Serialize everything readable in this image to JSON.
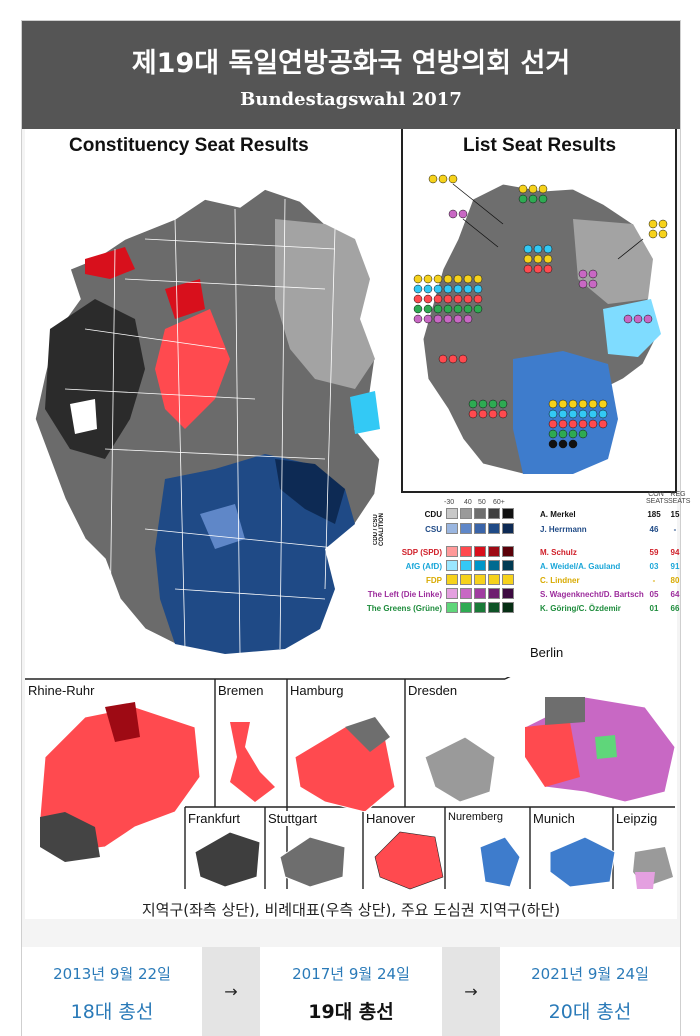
{
  "header": {
    "title_ko": "제19대 독일연방공화국 연방의회 선거",
    "title_de": "Bundestagswahl 2017"
  },
  "sections": {
    "constituency_title": "Constituency Seat Results",
    "list_title": "List Seat Results"
  },
  "legend": {
    "scale_labels": [
      "-30",
      "40",
      "50",
      "60+"
    ],
    "coalition_label": "CDU / CSU COALITION",
    "col_con": "CON SEATS",
    "col_reg": "REG SEATS",
    "rows": [
      {
        "party": "CDU",
        "leader": "A. Merkel",
        "con": "185",
        "reg": "15",
        "text_color": "#111111",
        "colors": [
          "#c8c8c8",
          "#9a9a9a",
          "#6e6e6e",
          "#3e3e3e",
          "#111111"
        ]
      },
      {
        "party": "CSU",
        "leader": "J. Herrmann",
        "con": "46",
        "reg": "-",
        "text_color": "#1f4a86",
        "colors": [
          "#9ab6e0",
          "#5f87c8",
          "#3a64a8",
          "#1f4a86",
          "#0d2a54"
        ]
      },
      {
        "party": "SDP (SPD)",
        "leader": "M. Schulz",
        "con": "59",
        "reg": "94",
        "text_color": "#d0202a",
        "colors": [
          "#ff9a9a",
          "#ff4a4f",
          "#d8101c",
          "#9e0a14",
          "#5a0008"
        ]
      },
      {
        "party": "AfG (AfD)",
        "leader": "A. Weidel/A. Gauland",
        "con": "03",
        "reg": "91",
        "text_color": "#1aa6d8",
        "colors": [
          "#9be7ff",
          "#33c9f5",
          "#0096c8",
          "#006a90",
          "#003a52"
        ]
      },
      {
        "party": "FDP",
        "leader": "C. Lindner",
        "con": "-",
        "reg": "80",
        "text_color": "#d8aa00",
        "colors": [
          "#f6d21c",
          "#f6d21c",
          "#f6d21c",
          "#f6d21c",
          "#f6d21c"
        ]
      },
      {
        "party": "The Left (Die Linke)",
        "leader": "S. Wagenknecht/D. Bartsch",
        "con": "05",
        "reg": "64",
        "text_color": "#9c2c9c",
        "colors": [
          "#e4a0e0",
          "#c868c4",
          "#a03ca0",
          "#6e1e70",
          "#3c0a40"
        ]
      },
      {
        "party": "The Greens (Grüne)",
        "leader": "K. Göring/C. Özdemir",
        "con": "01",
        "reg": "66",
        "text_color": "#1e8c3c",
        "colors": [
          "#5fd67a",
          "#2eaa52",
          "#1a7a38",
          "#0e5226",
          "#062e14"
        ]
      }
    ]
  },
  "cities": [
    "Rhine-Ruhr",
    "Bremen",
    "Hamburg",
    "Dresden",
    "Berlin",
    "Frankfurt",
    "Stuttgart",
    "Hanover",
    "Nuremberg",
    "Munich",
    "Leipzig"
  ],
  "caption": "지역구(좌측 상단), 비례대표(우측 상단), 주요 도심권 지역구(하단)",
  "timeline": {
    "prev_date": "2013년 9월 22일",
    "prev_label": "18대 총선",
    "cur_date": "2017년 9월 24일",
    "cur_label": "19대 총선",
    "next_date": "2021년 9월 24일",
    "next_label": "20대 총선",
    "arrow": "→"
  }
}
